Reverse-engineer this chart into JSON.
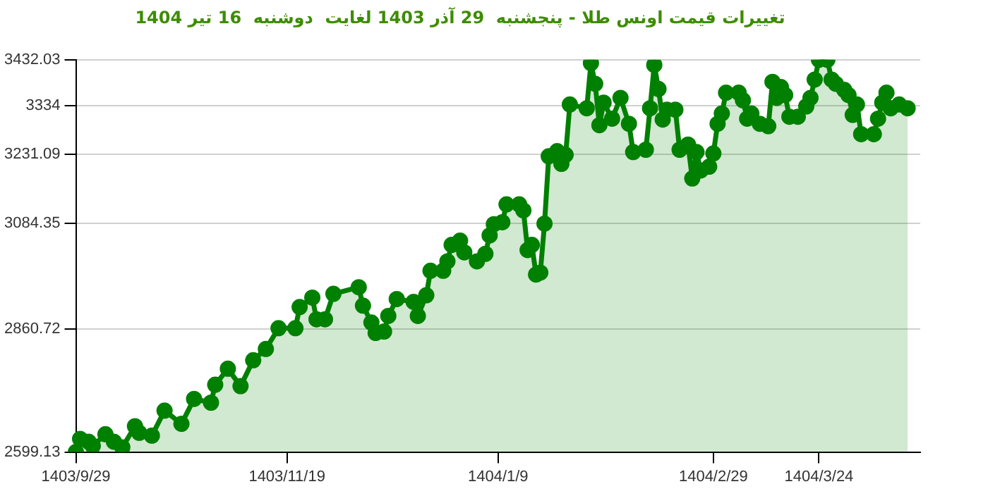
{
  "chart_data": {
    "type": "area",
    "title": "تغییرات قیمت اونس طلا - پنجشنبه  29 آذر 1403 لغایت  دوشنبه  16 تیر 1404",
    "color": "#008000",
    "marker": "circle",
    "grid": "y",
    "legend": false,
    "categories": [
      "1403/9/29",
      null,
      null,
      null,
      null,
      null,
      null,
      null,
      null,
      null,
      null,
      null,
      null,
      null,
      null,
      null,
      null,
      null,
      null,
      null,
      null,
      null,
      null,
      null,
      null,
      null,
      null,
      null,
      null,
      null,
      null,
      null,
      null,
      null,
      null,
      null,
      null,
      null,
      null,
      null,
      null,
      null,
      null,
      null,
      null,
      null,
      null,
      null,
      null,
      null,
      "1403/11/19",
      null,
      null,
      null,
      null,
      null,
      null,
      null,
      null,
      null,
      null,
      null,
      null,
      null,
      null,
      null,
      null,
      null,
      null,
      null,
      null,
      null,
      null,
      null,
      null,
      null,
      null,
      null,
      null,
      null,
      null,
      null,
      null,
      null,
      null,
      null,
      null,
      null,
      null,
      null,
      null,
      null,
      null,
      null,
      null,
      null,
      null,
      null,
      null,
      null,
      "1404/1/9",
      null,
      null,
      null,
      null,
      null,
      null,
      null,
      null,
      null,
      null,
      null,
      null,
      null,
      null,
      null,
      null,
      null,
      null,
      null,
      null,
      null,
      null,
      null,
      null,
      null,
      null,
      null,
      null,
      null,
      null,
      null,
      null,
      null,
      null,
      null,
      null,
      null,
      null,
      null,
      null,
      null,
      null,
      null,
      null,
      null,
      null,
      null,
      null,
      null,
      null,
      "1404/2/29",
      null,
      null,
      null,
      null,
      null,
      null,
      null,
      null,
      null,
      null,
      null,
      null,
      null,
      null,
      null,
      null,
      null,
      null,
      null,
      null,
      null,
      null,
      null,
      null,
      "1404/3/24",
      null,
      null,
      null,
      null,
      null,
      null,
      null,
      null,
      null,
      null,
      null,
      null,
      null,
      null,
      null,
      null,
      null,
      null,
      null,
      null,
      null,
      null,
      null,
      null
    ],
    "values": [
      2599.13,
      2627,
      null,
      2621,
      2612,
      null,
      null,
      2637,
      null,
      2621,
      null,
      2609,
      null,
      null,
      2654,
      2640,
      null,
      null,
      2634,
      null,
      null,
      2687,
      null,
      null,
      null,
      2659,
      null,
      null,
      2712,
      null,
      null,
      null,
      2704,
      2742,
      null,
      null,
      2776,
      null,
      null,
      2739,
      null,
      null,
      2794,
      null,
      null,
      2818,
      null,
      null,
      2862,
      null,
      null,
      null,
      2862,
      2907,
      null,
      null,
      2927,
      2881,
      null,
      2881,
      null,
      2935,
      null,
      null,
      null,
      null,
      null,
      2949,
      2910,
      null,
      2874,
      2852,
      null,
      2855,
      2888,
      null,
      2924,
      null,
      null,
      null,
      2918,
      2888,
      null,
      2932,
      2984,
      null,
      null,
      2984,
      3004,
      3039,
      null,
      3048,
      3023,
      null,
      null,
      3004,
      null,
      3020,
      3059,
      3083,
      null,
      3087,
      3125,
      null,
      null,
      3125,
      3112,
      3028,
      3039,
      2976,
      2980,
      3084,
      3227,
      null,
      3238,
      3211,
      3230,
      3337,
      null,
      null,
      null,
      3329,
      3425,
      3381,
      3293,
      3341,
      null,
      3307,
      null,
      3351,
      null,
      3296,
      3236,
      null,
      null,
      3241,
      3329,
      3421,
      3370,
      3305,
      3326,
      null,
      3326,
      3241,
      null,
      3252,
      3180,
      3236,
      3197,
      null,
      3205,
      3233,
      3296,
      3318,
      3362,
      null,
      null,
      3362,
      3346,
      3307,
      3318,
      null,
      3296,
      null,
      3291,
      3385,
      3351,
      3374,
      3357,
      3311,
      null,
      3311,
      null,
      3333,
      3351,
      3390,
      3432,
      null,
      3432,
      3390,
      3381,
      null,
      3368,
      3357,
      3315,
      3337,
      3274,
      null,
      null,
      3274,
      3307,
      3341,
      3362,
      3329,
      null,
      3337,
      null,
      3329,
      null,
      null,
      null
    ],
    "ylim": [
      2599.13,
      3432.03
    ],
    "yticks": [
      2599.13,
      2860.72,
      3084.35,
      3231.09,
      3334,
      3432.03
    ]
  }
}
